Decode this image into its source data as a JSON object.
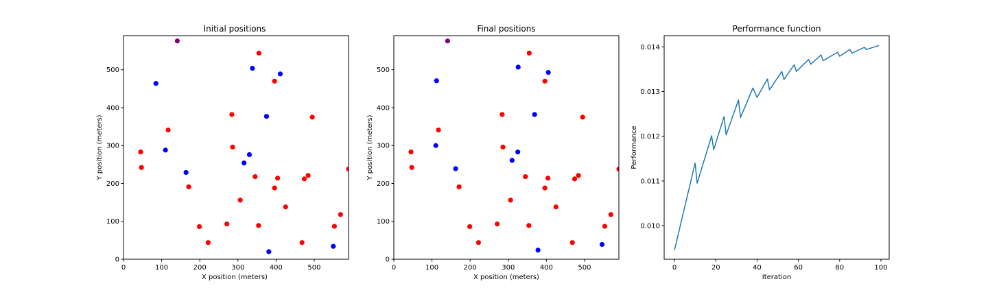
{
  "colors": {
    "red_nodes": "#ff0000",
    "blue_nodes": "#0000ff",
    "sink_node": "#800080",
    "performance_line": "#1f77b4"
  },
  "chart_data": [
    {
      "type": "scatter",
      "title": "Initial positions",
      "xlabel": "X position (meters)",
      "ylabel": "Y position (meters)",
      "xlim": [
        0,
        590
      ],
      "ylim": [
        0,
        590
      ],
      "xticks": [
        0,
        100,
        200,
        300,
        400,
        500
      ],
      "yticks": [
        0,
        100,
        200,
        300,
        400,
        500
      ],
      "series": [
        {
          "color": "#800080",
          "points": [
            [
              141,
              576
            ]
          ]
        },
        {
          "color": "#0000ff",
          "points": [
            [
              85,
              464
            ],
            [
              110,
              288
            ],
            [
              164,
              229
            ],
            [
              316,
              254
            ],
            [
              330,
              276
            ],
            [
              338,
              504
            ],
            [
              375,
              377
            ],
            [
              411,
              489
            ],
            [
              381,
              20
            ],
            [
              550,
              34
            ]
          ]
        },
        {
          "color": "#ff0000",
          "points": [
            [
              355,
              544
            ],
            [
              396,
              470
            ],
            [
              495,
              375
            ],
            [
              117,
              341
            ],
            [
              284,
              382
            ],
            [
              286,
              296
            ],
            [
              45,
              283
            ],
            [
              47,
              242
            ],
            [
              171,
              191
            ],
            [
              345,
              218
            ],
            [
              404,
              214
            ],
            [
              396,
              188
            ],
            [
              474,
              212
            ],
            [
              484,
              221
            ],
            [
              590,
              238
            ],
            [
              306,
              156
            ],
            [
              425,
              138
            ],
            [
              199,
              86
            ],
            [
              222,
              44
            ],
            [
              271,
              93
            ],
            [
              354,
              89
            ],
            [
              468,
              44
            ],
            [
              553,
              87
            ],
            [
              569,
              118
            ]
          ]
        }
      ]
    },
    {
      "type": "scatter",
      "title": "Final positions",
      "xlabel": "X position (meters)",
      "ylabel": "Y position (meters)",
      "xlim": [
        0,
        590
      ],
      "ylim": [
        0,
        590
      ],
      "xticks": [
        0,
        100,
        200,
        300,
        400,
        500
      ],
      "yticks": [
        0,
        100,
        200,
        300,
        400,
        500
      ],
      "series": [
        {
          "color": "#800080",
          "points": [
            [
              141,
              576
            ]
          ]
        },
        {
          "color": "#0000ff",
          "points": [
            [
              112,
              471
            ],
            [
              110,
              300
            ],
            [
              162,
              239
            ],
            [
              310,
              261
            ],
            [
              325,
              283
            ],
            [
              326,
              507
            ],
            [
              369,
              382
            ],
            [
              405,
              493
            ],
            [
              378,
              24
            ],
            [
              546,
              39
            ]
          ]
        },
        {
          "color": "#ff0000",
          "points": [
            [
              355,
              544
            ],
            [
              396,
              470
            ],
            [
              495,
              375
            ],
            [
              117,
              341
            ],
            [
              284,
              382
            ],
            [
              286,
              296
            ],
            [
              45,
              283
            ],
            [
              47,
              242
            ],
            [
              171,
              191
            ],
            [
              345,
              218
            ],
            [
              404,
              214
            ],
            [
              396,
              188
            ],
            [
              474,
              212
            ],
            [
              484,
              221
            ],
            [
              590,
              238
            ],
            [
              306,
              156
            ],
            [
              425,
              138
            ],
            [
              199,
              86
            ],
            [
              222,
              44
            ],
            [
              271,
              93
            ],
            [
              354,
              89
            ],
            [
              468,
              44
            ],
            [
              553,
              87
            ],
            [
              569,
              118
            ]
          ]
        }
      ]
    },
    {
      "type": "line",
      "title": "Performance function",
      "xlabel": "Iteration",
      "ylabel": "Performance",
      "xlim": [
        -5,
        104
      ],
      "ylim": [
        0.00925,
        0.01425
      ],
      "xticks": [
        0,
        20,
        40,
        60,
        80,
        100
      ],
      "yticks": [
        0.01,
        0.011,
        0.012,
        0.013,
        0.014
      ],
      "ytick_labels": [
        "0.010",
        "0.011",
        "0.012",
        "0.013",
        "0.014"
      ],
      "series": [
        {
          "color": "#1f77b4",
          "x": [
            0,
            10,
            11,
            18,
            19,
            24,
            25,
            31,
            32,
            38,
            40,
            45,
            46,
            52,
            53,
            58,
            59,
            65,
            66,
            71,
            72,
            79,
            80,
            85,
            86,
            92,
            93,
            99
          ],
          "y": [
            0.00945,
            0.0114,
            0.01095,
            0.01201,
            0.0117,
            0.01244,
            0.01203,
            0.01281,
            0.01242,
            0.01308,
            0.01287,
            0.01328,
            0.01304,
            0.01345,
            0.01327,
            0.0136,
            0.01345,
            0.01372,
            0.01361,
            0.01382,
            0.01369,
            0.01388,
            0.01379,
            0.01394,
            0.01386,
            0.01399,
            0.01394,
            0.01403
          ]
        }
      ]
    }
  ]
}
